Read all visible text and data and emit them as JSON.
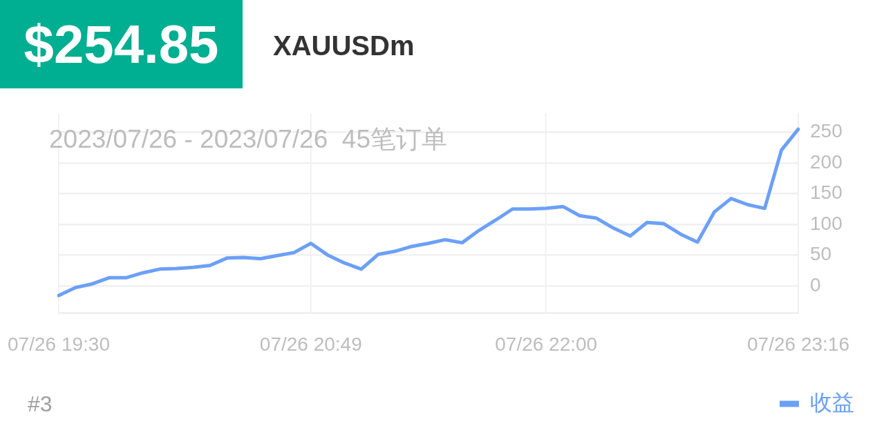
{
  "chart_data": {
    "type": "line",
    "title": "$254.85",
    "subtitle": "XAUUSDm",
    "annotations": [
      "2023/07/26 - 2023/07/26  45笔订单",
      "#3"
    ],
    "categories": [
      "07/26 19:30",
      null,
      null,
      null,
      null,
      null,
      null,
      null,
      null,
      null,
      null,
      null,
      null,
      null,
      null,
      "07/26 20:49",
      null,
      null,
      null,
      null,
      null,
      null,
      null,
      null,
      null,
      null,
      null,
      null,
      null,
      "07/26 22:00",
      null,
      null,
      null,
      null,
      null,
      null,
      null,
      null,
      null,
      null,
      null,
      null,
      null,
      null,
      "07/26 23:16"
    ],
    "series": [
      {
        "name": "收益",
        "color": "#6ca0f6",
        "values": [
          -16,
          -3,
          3,
          13,
          13,
          21,
          27,
          28,
          30,
          33,
          45,
          46,
          44,
          49,
          54,
          69,
          50,
          37,
          27,
          51,
          56,
          64,
          69,
          75,
          70,
          90,
          107,
          125,
          125,
          126,
          129,
          114,
          110,
          94,
          81,
          103,
          101,
          84,
          71,
          120,
          142,
          132,
          126,
          221,
          255
        ]
      }
    ],
    "ylim": [
      -44,
      281
    ],
    "yticks": [
      0,
      50,
      100,
      150,
      200,
      250
    ],
    "grid": true,
    "legend": "bottom right",
    "marker": "none",
    "line_style": "solid"
  }
}
